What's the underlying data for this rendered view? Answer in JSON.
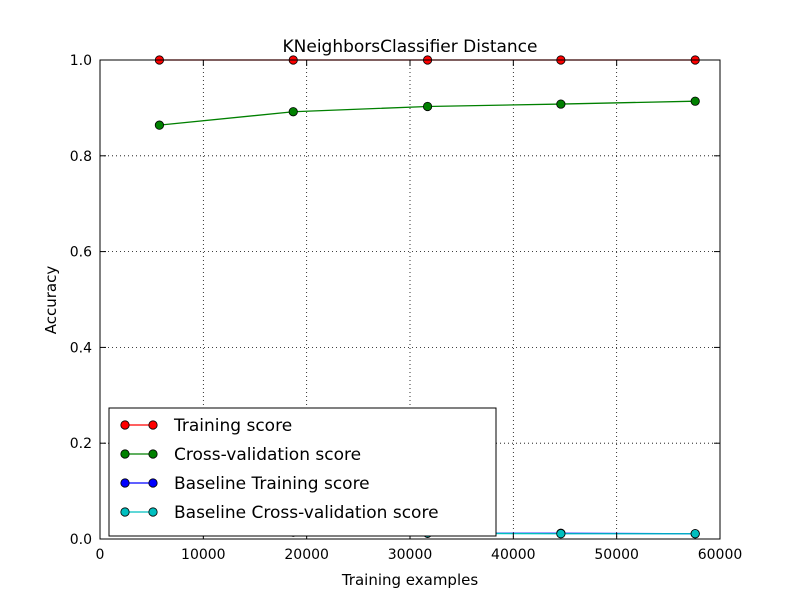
{
  "chart_data": {
    "type": "line",
    "title": "KNeighborsClassifier Distance",
    "xlabel": "Training examples",
    "ylabel": "Accuracy",
    "xlim": [
      0,
      60000
    ],
    "ylim": [
      0,
      1.0
    ],
    "xticks": [
      0,
      10000,
      20000,
      30000,
      40000,
      50000,
      60000
    ],
    "xtick_labels": [
      "0",
      "10000",
      "20000",
      "30000",
      "40000",
      "50000",
      "60000"
    ],
    "yticks": [
      0,
      0.2,
      0.4,
      0.6,
      0.8,
      1.0
    ],
    "ytick_labels": [
      "0.0",
      "0.2",
      "0.4",
      "0.6",
      "0.8",
      "1.0"
    ],
    "grid": true,
    "legend_position": "lower-left",
    "x": [
      5750,
      18700,
      31700,
      44600,
      57600
    ],
    "series": [
      {
        "name": "Training score",
        "color": "#ff0000",
        "values": [
          1.0,
          1.0,
          1.0,
          1.0,
          1.0
        ]
      },
      {
        "name": "Cross-validation score",
        "color": "#008000",
        "values": [
          0.864,
          0.892,
          0.903,
          0.908,
          0.914
        ]
      },
      {
        "name": "Baseline Training score",
        "color": "#0000ff",
        "values": [
          0.018,
          0.015,
          0.012,
          0.012,
          0.011
        ]
      },
      {
        "name": "Baseline Cross-validation score",
        "color": "#00bfbf",
        "values": [
          0.018,
          0.014,
          0.012,
          0.011,
          0.011
        ]
      }
    ]
  }
}
